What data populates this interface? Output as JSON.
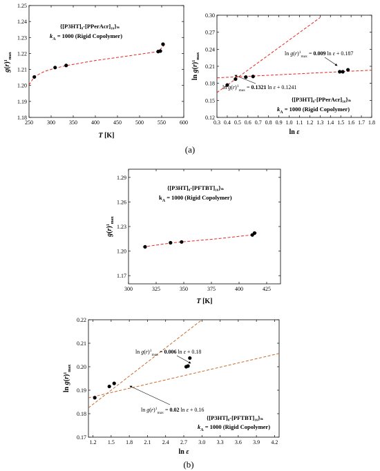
{
  "chart_data": [
    {
      "id": "a1",
      "type": "scatter",
      "title_line1": "{[P3HT]₈-[PPerAcr]₁₆}ₙ",
      "title_line2": "k_A = 1000 (Rigid Copolymer)",
      "xlabel": "T [K]",
      "ylabel": "g(r)¹max",
      "xlim": [
        250,
        600
      ],
      "ylim": [
        1.18,
        1.25
      ],
      "xticks": [
        "250",
        "300",
        "350",
        "400",
        "450",
        "500",
        "550",
        "600"
      ],
      "yticks": [
        "1.18",
        "1.19",
        "1.20",
        "1.21",
        "1.22",
        "1.23",
        "1.24",
        "1.25"
      ],
      "points": [
        {
          "x": 262,
          "y": 1.2053
        },
        {
          "x": 309,
          "y": 1.2112
        },
        {
          "x": 334,
          "y": 1.2125
        },
        {
          "x": 542,
          "y": 1.2212
        },
        {
          "x": 547,
          "y": 1.2215
        },
        {
          "x": 553,
          "y": 1.2258
        }
      ],
      "fit_curve": [
        {
          "x": 250,
          "y": 1.2003
        },
        {
          "x": 262,
          "y": 1.2055
        },
        {
          "x": 285,
          "y": 1.2088
        },
        {
          "x": 309,
          "y": 1.2108
        },
        {
          "x": 334,
          "y": 1.2124
        },
        {
          "x": 400,
          "y": 1.2156
        },
        {
          "x": 470,
          "y": 1.2183
        },
        {
          "x": 542,
          "y": 1.2212
        },
        {
          "x": 557,
          "y": 1.2255
        }
      ]
    },
    {
      "id": "a2",
      "type": "scatter",
      "title_line1": "{[P3HT]₈-[PPerAcr]₁₆}ₙ",
      "title_line2": "k_A = 1000 (Rigid Copolymer)",
      "xlabel": "ln ε",
      "ylabel": "ln g(r)¹max",
      "xlim": [
        0.3,
        1.8
      ],
      "ylim": [
        0.12,
        0.3
      ],
      "xticks": [
        "0.3",
        "0.4",
        "0.5",
        "0.6",
        "0.7",
        "0.8",
        "0.9",
        "1.0",
        "1.1",
        "1.2",
        "1.3",
        "1.4",
        "1.5",
        "1.6",
        "1.7",
        "1.8"
      ],
      "yticks": [
        "0.12",
        "0.15",
        "0.18",
        "0.21",
        "0.24",
        "0.27",
        "0.30"
      ],
      "points": [
        {
          "x": 0.4,
          "y": 0.177
        },
        {
          "x": 0.48,
          "y": 0.1874
        },
        {
          "x": 0.58,
          "y": 0.191
        },
        {
          "x": 0.65,
          "y": 0.1921
        },
        {
          "x": 1.49,
          "y": 0.2004
        },
        {
          "x": 1.52,
          "y": 0.2004
        },
        {
          "x": 1.57,
          "y": 0.2038
        }
      ],
      "fits": [
        {
          "slope": 0.1321,
          "intercept": 0.1241,
          "x_range": [
            0.3,
            1.3
          ]
        },
        {
          "slope": 0.009,
          "intercept": 0.187,
          "x_range": [
            0.3,
            1.8
          ]
        }
      ],
      "annotations": [
        {
          "text_prefix": "ln g(r)¹max = ",
          "coef": "0.009",
          "text_suffix": " ln ε + 0.187"
        },
        {
          "text_prefix": "ln g(r)¹max = ",
          "coef": "0.1321",
          "text_suffix": " ln ε + 0.1241"
        }
      ]
    },
    {
      "id": "b1",
      "type": "scatter",
      "title_line1": "{[P3HT]₈-[PFTBT]₁₆}ₙ",
      "title_line2": "k_A = 1000 (Rigid Copolymer)",
      "xlabel": "T [K]",
      "ylabel": "g(r)¹max",
      "xlim": [
        300,
        437.5
      ],
      "ylim": [
        1.16,
        1.3
      ],
      "xticks": [
        "300",
        "325",
        "350",
        "375",
        "400",
        "425"
      ],
      "yticks": [
        "1.17",
        "1.20",
        "1.23",
        "1.26",
        "1.29"
      ],
      "points": [
        {
          "x": 315,
          "y": 1.2052
        },
        {
          "x": 338,
          "y": 1.2102
        },
        {
          "x": 348,
          "y": 1.2112
        },
        {
          "x": 412,
          "y": 1.2197
        },
        {
          "x": 414,
          "y": 1.222
        }
      ],
      "fit_curve": [
        {
          "x": 313,
          "y": 1.205
        },
        {
          "x": 338,
          "y": 1.2098
        },
        {
          "x": 348,
          "y": 1.2112
        },
        {
          "x": 380,
          "y": 1.215
        },
        {
          "x": 412,
          "y": 1.2198
        },
        {
          "x": 416,
          "y": 1.2225
        }
      ]
    },
    {
      "id": "b2",
      "type": "scatter",
      "title_line1": "{[P3HT]₈-[PFTBT]₁₆}ₙ",
      "title_line2": "k_A = 1000 (Rigid Copolymer)",
      "xlabel": "ln ε",
      "ylabel": "ln g(r)¹max",
      "xlim": [
        1.125,
        4.275
      ],
      "ylim": [
        0.17,
        0.22
      ],
      "xticks": [
        "1.2",
        "1.5",
        "1.8",
        "2.1",
        "2.4",
        "2.7",
        "3.0",
        "3.3",
        "3.6",
        "3.9",
        "4.2"
      ],
      "yticks": [
        "0.17",
        "0.18",
        "0.19",
        "0.20",
        "0.21",
        "0.22"
      ],
      "points": [
        {
          "x": 1.23,
          "y": 0.1868
        },
        {
          "x": 1.47,
          "y": 0.1916
        },
        {
          "x": 1.55,
          "y": 0.1929
        },
        {
          "x": 2.74,
          "y": 0.2
        },
        {
          "x": 2.77,
          "y": 0.2003
        },
        {
          "x": 2.8,
          "y": 0.2037
        }
      ],
      "fits": [
        {
          "slope": 0.02,
          "intercept": 0.16,
          "x_range": [
            1.125,
            3.0
          ]
        },
        {
          "slope": 0.006,
          "intercept": 0.18,
          "x_range": [
            1.125,
            4.275
          ]
        }
      ],
      "annotations": [
        {
          "text_prefix": "ln g(r)¹max = ",
          "coef": "0.006",
          "text_suffix": " ln ε + 0.18"
        },
        {
          "text_prefix": "ln g(r)¹max = ",
          "coef": "0.02",
          "text_suffix": " ln ε + 0.16"
        }
      ]
    }
  ],
  "panel_labels": [
    "(a)",
    "(b)"
  ],
  "colors": {
    "fit_a": "#e8231f",
    "fit_b": "#c8682a",
    "marker": "#000000"
  }
}
